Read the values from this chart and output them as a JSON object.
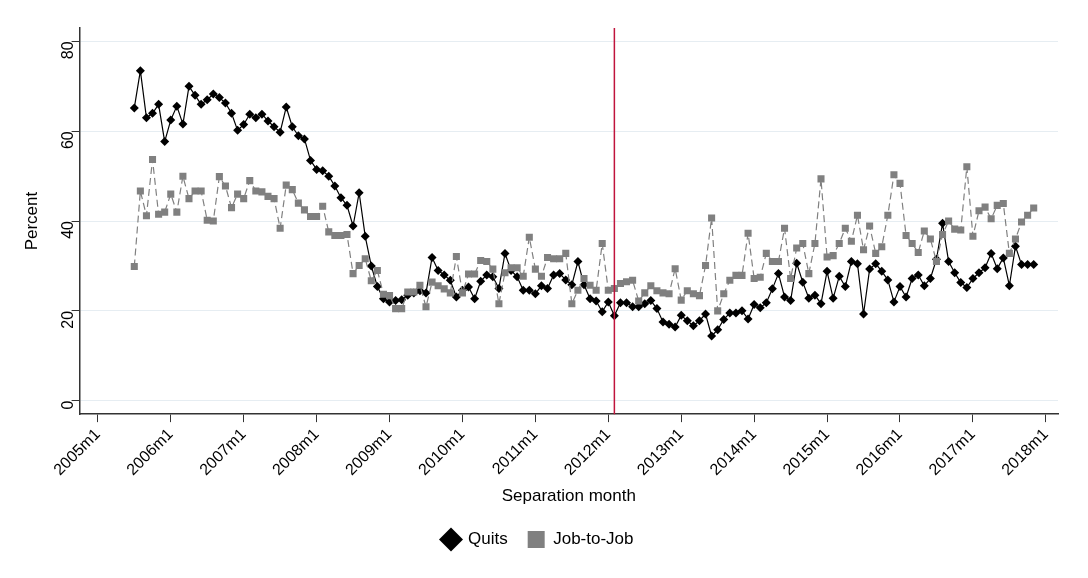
{
  "chart_data": {
    "type": "line",
    "xlabel": "Separation month",
    "ylabel": "Percent",
    "x": [
      "2005-07",
      "2005-08",
      "2005-09",
      "2005-10",
      "2005-11",
      "2005-12",
      "2006-01",
      "2006-02",
      "2006-03",
      "2006-04",
      "2006-05",
      "2006-06",
      "2006-07",
      "2006-08",
      "2006-09",
      "2006-10",
      "2006-11",
      "2006-12",
      "2007-01",
      "2007-02",
      "2007-03",
      "2007-04",
      "2007-05",
      "2007-06",
      "2007-07",
      "2007-08",
      "2007-09",
      "2007-10",
      "2007-11",
      "2007-12",
      "2008-01",
      "2008-02",
      "2008-03",
      "2008-04",
      "2008-05",
      "2008-06",
      "2008-07",
      "2008-08",
      "2008-09",
      "2008-10",
      "2008-11",
      "2008-12",
      "2009-01",
      "2009-02",
      "2009-03",
      "2009-04",
      "2009-05",
      "2009-06",
      "2009-07",
      "2009-08",
      "2009-09",
      "2009-10",
      "2009-11",
      "2009-12",
      "2010-01",
      "2010-02",
      "2010-03",
      "2010-04",
      "2010-05",
      "2010-06",
      "2010-07",
      "2010-08",
      "2010-09",
      "2010-10",
      "2010-11",
      "2010-12",
      "2011-01",
      "2011-02",
      "2011-03",
      "2011-04",
      "2011-05",
      "2011-06",
      "2011-07",
      "2011-08",
      "2011-09",
      "2011-10",
      "2011-11",
      "2011-12",
      "2012-01",
      "2012-02",
      "2012-03",
      "2012-04",
      "2012-05",
      "2012-06",
      "2012-07",
      "2012-08",
      "2012-09",
      "2012-10",
      "2012-11",
      "2012-12",
      "2013-01",
      "2013-02",
      "2013-03",
      "2013-04",
      "2013-05",
      "2013-06",
      "2013-07",
      "2013-08",
      "2013-09",
      "2013-10",
      "2013-11",
      "2013-12",
      "2014-01",
      "2014-02",
      "2014-03",
      "2014-04",
      "2014-05",
      "2014-06",
      "2014-07",
      "2014-08",
      "2014-09",
      "2014-10",
      "2014-11",
      "2014-12",
      "2015-01",
      "2015-02",
      "2015-03",
      "2015-04",
      "2015-05",
      "2015-06",
      "2015-07",
      "2015-08",
      "2015-09",
      "2015-10",
      "2015-11",
      "2015-12",
      "2016-01",
      "2016-02",
      "2016-03",
      "2016-04",
      "2016-05",
      "2016-06",
      "2016-07",
      "2016-08",
      "2016-09",
      "2016-10",
      "2016-11",
      "2016-12",
      "2017-01",
      "2017-02",
      "2017-03",
      "2017-04",
      "2017-05",
      "2017-06",
      "2017-07",
      "2017-08",
      "2017-09",
      "2017-10",
      "2017-11"
    ],
    "series": [
      {
        "name": "Quits",
        "color": "#000000",
        "marker": "diamond",
        "line_style": "solid",
        "values": [
          65.2,
          73.5,
          63,
          64,
          66,
          57.7,
          62.5,
          65.6,
          61.6,
          70,
          68,
          66,
          67,
          68.3,
          67.5,
          66.3,
          64,
          60.2,
          61.5,
          63.8,
          63,
          63.8,
          62.3,
          61,
          59.8,
          65.4,
          61,
          59,
          58.3,
          53.5,
          51.5,
          51.2,
          50,
          47.8,
          45.2,
          43.5,
          38.9,
          46.3,
          36.6,
          30,
          25.4,
          22.7,
          22,
          22.3,
          22.5,
          23.5,
          24,
          24.5,
          24,
          31.9,
          29,
          28,
          26.8,
          23.1,
          24.6,
          25.3,
          22.7,
          26.6,
          28,
          27.6,
          25,
          32.8,
          29,
          27.6,
          24.6,
          24.6,
          23.8,
          25.6,
          25,
          28,
          28.3,
          26.9,
          25.8,
          31,
          25.8,
          22.7,
          22.2,
          19.8,
          22,
          18.9,
          21.8,
          21.8,
          20.9,
          20.9,
          21.6,
          22.3,
          20.5,
          17.5,
          17,
          16.4,
          19,
          17.8,
          16.7,
          17.8,
          19.3,
          14.4,
          15.8,
          18.1,
          19.5,
          19.5,
          20,
          18.2,
          21.4,
          20.7,
          21.8,
          24.9,
          28.3,
          23.1,
          22.3,
          30.6,
          26.4,
          22.8,
          23.5,
          21.6,
          28.8,
          22.8,
          27.7,
          25.4,
          31,
          30.5,
          19.3,
          29.3,
          30.5,
          28.8,
          26.9,
          22,
          25.4,
          23.1,
          27.2,
          28,
          25.6,
          27.2,
          31.5,
          39.5,
          31,
          28.5,
          26.3,
          25.2,
          27.2,
          28.5,
          29.6,
          32.8,
          29.4,
          31.8,
          25.6,
          34.4,
          30.3,
          30.3,
          30.3
        ]
      },
      {
        "name": "Job-to-Job",
        "color": "#808080",
        "marker": "square",
        "line_style": "dashed",
        "values": [
          29.9,
          46.7,
          41.2,
          53.7,
          41.5,
          42,
          46,
          42,
          50,
          45,
          46.7,
          46.7,
          40.2,
          40,
          49.9,
          47.8,
          43,
          46,
          45,
          49,
          46.7,
          46.5,
          45.5,
          45,
          38.4,
          48,
          47,
          44,
          42.5,
          41,
          41,
          43.3,
          37.6,
          36.8,
          36.8,
          37,
          28.3,
          30.1,
          31.6,
          26.7,
          29,
          23.7,
          23.4,
          20.5,
          20.5,
          24.2,
          24.2,
          25.7,
          20.9,
          26.4,
          25.6,
          24.9,
          24,
          32.1,
          24,
          28.2,
          28.2,
          31.2,
          31,
          29.3,
          21.6,
          28.5,
          29.6,
          29.6,
          27.7,
          36.4,
          29.3,
          27.7,
          31.9,
          31.6,
          31.6,
          32.8,
          21.6,
          24.6,
          27.2,
          25.7,
          24.6,
          35,
          24.6,
          25,
          26.1,
          26.5,
          26.8,
          22.2,
          24,
          25.6,
          24.5,
          24,
          23.8,
          29.4,
          22.4,
          24.5,
          23.8,
          23.4,
          30.1,
          40.7,
          20,
          23.8,
          26.8,
          27.9,
          27.9,
          37.3,
          27.2,
          27.5,
          32.8,
          31,
          31,
          38.4,
          27.2,
          34,
          35,
          28.3,
          35,
          49.4,
          32,
          32.3,
          35,
          38.4,
          35.5,
          41.3,
          33.6,
          38.9,
          32.8,
          34.3,
          41.3,
          50.3,
          48.4,
          36.8,
          35,
          33,
          37.8,
          36,
          31,
          37,
          40,
          38.2,
          38,
          52.1,
          36.6,
          42.3,
          43.1,
          40.5,
          43.5,
          43.9,
          32.8,
          36,
          39.8,
          41.3,
          42.9
        ]
      }
    ],
    "xlim": [
      "2004-10",
      "2018-03"
    ],
    "xticks": [
      {
        "value": "2005-01",
        "label": "2005m1"
      },
      {
        "value": "2006-01",
        "label": "2006m1"
      },
      {
        "value": "2007-01",
        "label": "2007m1"
      },
      {
        "value": "2008-01",
        "label": "2008m1"
      },
      {
        "value": "2009-01",
        "label": "2009m1"
      },
      {
        "value": "2010-01",
        "label": "2010m1"
      },
      {
        "value": "2011-01",
        "label": "2011m1"
      },
      {
        "value": "2012-01",
        "label": "2012m1"
      },
      {
        "value": "2013-01",
        "label": "2013m1"
      },
      {
        "value": "2014-01",
        "label": "2014m1"
      },
      {
        "value": "2015-01",
        "label": "2015m1"
      },
      {
        "value": "2016-01",
        "label": "2016m1"
      },
      {
        "value": "2017-01",
        "label": "2017m1"
      },
      {
        "value": "2018-01",
        "label": "2018m1"
      }
    ],
    "ylim": [
      -3,
      83
    ],
    "yticks": [
      0,
      20,
      40,
      60,
      80
    ],
    "ref_lines": [
      {
        "axis": "x",
        "value": "2012-02",
        "color": "#c0143c"
      }
    ],
    "grid": "y",
    "legend": "bottom"
  }
}
